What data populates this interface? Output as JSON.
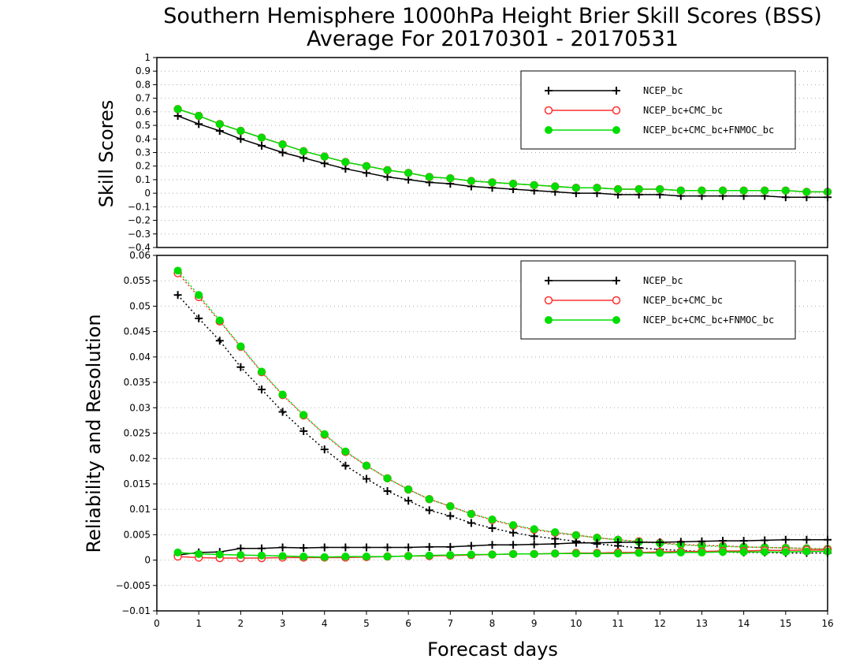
{
  "chart_data": {
    "title_line1": "Southern Hemisphere 1000hPa Height Brier Skill Scores (BSS)",
    "title_line2": "Average For 20170301 - 20170531",
    "xlabel": "Forecast days",
    "xlim": [
      0,
      16
    ],
    "x_ticks": [
      "0",
      "1",
      "2",
      "3",
      "4",
      "5",
      "6",
      "7",
      "8",
      "9",
      "10",
      "11",
      "12",
      "13",
      "14",
      "15",
      "16"
    ],
    "x": [
      0.5,
      1,
      1.5,
      2,
      2.5,
      3,
      3.5,
      4,
      4.5,
      5,
      5.5,
      6,
      6.5,
      7,
      7.5,
      8,
      8.5,
      9,
      9.5,
      10,
      10.5,
      11,
      11.5,
      12,
      12.5,
      13,
      13.5,
      14,
      14.5,
      15,
      15.5,
      16
    ],
    "legend_position": "top-right",
    "series_styles": [
      {
        "name": "NCEP_bc",
        "color": "#000000",
        "marker": "plus"
      },
      {
        "name": "NCEP_bc+CMC_bc",
        "color": "#ff3030",
        "marker": "open-circle"
      },
      {
        "name": "NCEP_bc+CMC_bc+FNMOC_bc",
        "color": "#00dd00",
        "marker": "filled-circle"
      }
    ],
    "panels": [
      {
        "type": "line",
        "ylabel": "Skill Scores",
        "ylim": [
          -0.4,
          1
        ],
        "y_ticks": [
          "−0.4",
          "−0.3",
          "−0.2",
          "−0.1",
          "0",
          "0.1",
          "0.2",
          "0.3",
          "0.4",
          "0.5",
          "0.6",
          "0.7",
          "0.8",
          "0.9",
          "1"
        ],
        "y_tick_values": [
          -0.4,
          -0.3,
          -0.2,
          -0.1,
          0,
          0.1,
          0.2,
          0.3,
          0.4,
          0.5,
          0.6,
          0.7,
          0.8,
          0.9,
          1
        ],
        "grid": true,
        "series": [
          {
            "name": "NCEP_bc",
            "line": "solid",
            "values": [
              0.57,
              0.51,
              0.46,
              0.4,
              0.35,
              0.3,
              0.26,
              0.22,
              0.18,
              0.15,
              0.12,
              0.1,
              0.08,
              0.07,
              0.05,
              0.04,
              0.03,
              0.02,
              0.01,
              0.0,
              0.0,
              -0.01,
              -0.01,
              -0.01,
              -0.02,
              -0.02,
              -0.02,
              -0.02,
              -0.02,
              -0.03,
              -0.03,
              -0.03
            ]
          },
          {
            "name": "NCEP_bc+CMC_bc",
            "line": "solid",
            "values": [
              0.62,
              0.57,
              0.51,
              0.46,
              0.41,
              0.36,
              0.31,
              0.27,
              0.23,
              0.2,
              0.17,
              0.15,
              0.12,
              0.11,
              0.09,
              0.08,
              0.07,
              0.06,
              0.05,
              0.04,
              0.04,
              0.03,
              0.03,
              0.03,
              0.02,
              0.02,
              0.02,
              0.02,
              0.02,
              0.02,
              0.01,
              0.01
            ]
          },
          {
            "name": "NCEP_bc+CMC_bc+FNMOC_bc",
            "line": "solid",
            "values": [
              0.62,
              0.57,
              0.51,
              0.46,
              0.41,
              0.36,
              0.31,
              0.27,
              0.23,
              0.2,
              0.17,
              0.15,
              0.12,
              0.11,
              0.09,
              0.08,
              0.07,
              0.06,
              0.05,
              0.04,
              0.04,
              0.03,
              0.03,
              0.03,
              0.02,
              0.02,
              0.02,
              0.02,
              0.02,
              0.02,
              0.01,
              0.01
            ]
          }
        ]
      },
      {
        "type": "line",
        "ylabel": "Reliability and Resolution",
        "ylim": [
          -0.01,
          0.06
        ],
        "y_ticks": [
          "−0.01",
          "−0.005",
          "0",
          "0.005",
          "0.01",
          "0.015",
          "0.02",
          "0.025",
          "0.03",
          "0.035",
          "0.04",
          "0.045",
          "0.05",
          "0.055",
          "0.06"
        ],
        "y_tick_values": [
          -0.01,
          -0.005,
          0,
          0.005,
          0.01,
          0.015,
          0.02,
          0.025,
          0.03,
          0.035,
          0.04,
          0.045,
          0.05,
          0.055,
          0.06
        ],
        "grid": true,
        "series": [
          {
            "name": "NCEP_bc",
            "role": "resolution",
            "line": "dotted",
            "values": [
              0.0522,
              0.0476,
              0.0432,
              0.038,
              0.0336,
              0.0292,
              0.0254,
              0.0218,
              0.0186,
              0.016,
              0.0136,
              0.0117,
              0.0098,
              0.0087,
              0.0073,
              0.0063,
              0.0054,
              0.0047,
              0.0042,
              0.0037,
              0.0032,
              0.0028,
              0.0024,
              0.0021,
              0.0019,
              0.0017,
              0.0016,
              0.0015,
              0.0015,
              0.0014,
              0.0014,
              0.0014
            ]
          },
          {
            "name": "NCEP_bc",
            "role": "reliability",
            "line": "solid",
            "values": [
              0.001,
              0.0015,
              0.0016,
              0.0023,
              0.0023,
              0.0025,
              0.0024,
              0.0025,
              0.0025,
              0.0025,
              0.0025,
              0.0025,
              0.0026,
              0.0026,
              0.0028,
              0.003,
              0.003,
              0.0031,
              0.0032,
              0.0034,
              0.0034,
              0.0035,
              0.0035,
              0.0035,
              0.0036,
              0.0037,
              0.0038,
              0.0038,
              0.0039,
              0.004,
              0.004,
              0.004
            ]
          },
          {
            "name": "NCEP_bc+CMC_bc",
            "role": "resolution",
            "line": "dotted",
            "values": [
              0.0565,
              0.0518,
              0.047,
              0.042,
              0.037,
              0.0325,
              0.0285,
              0.0247,
              0.0213,
              0.0186,
              0.0161,
              0.0139,
              0.012,
              0.0106,
              0.0091,
              0.0079,
              0.0068,
              0.006,
              0.0054,
              0.0049,
              0.0044,
              0.004,
              0.0037,
              0.0034,
              0.0031,
              0.0029,
              0.0028,
              0.0026,
              0.0025,
              0.0024,
              0.0023,
              0.0022
            ]
          },
          {
            "name": "NCEP_bc+CMC_bc",
            "role": "reliability",
            "line": "solid",
            "values": [
              0.0007,
              0.0005,
              0.0004,
              0.0004,
              0.0004,
              0.0005,
              0.0005,
              0.0005,
              0.0005,
              0.0006,
              0.0007,
              0.0008,
              0.0008,
              0.0009,
              0.001,
              0.0011,
              0.0012,
              0.0012,
              0.0013,
              0.0014,
              0.0014,
              0.0015,
              0.0015,
              0.0016,
              0.0017,
              0.0017,
              0.0018,
              0.0018,
              0.0019,
              0.0019,
              0.002,
              0.002
            ]
          },
          {
            "name": "NCEP_bc+CMC_bc+FNMOC_bc",
            "role": "resolution",
            "line": "dotted",
            "values": [
              0.057,
              0.0522,
              0.0472,
              0.0421,
              0.0371,
              0.0326,
              0.0286,
              0.0248,
              0.0214,
              0.0186,
              0.0161,
              0.0139,
              0.012,
              0.0106,
              0.0091,
              0.008,
              0.0069,
              0.0061,
              0.0055,
              0.0049,
              0.0044,
              0.004,
              0.0036,
              0.0033,
              0.003,
              0.0028,
              0.0027,
              0.0026,
              0.0025,
              0.0024,
              0.0023,
              0.0022
            ]
          },
          {
            "name": "NCEP_bc+CMC_bc+FNMOC_bc",
            "role": "reliability",
            "line": "solid",
            "values": [
              0.0015,
              0.0012,
              0.0011,
              0.001,
              0.0009,
              0.0008,
              0.0007,
              0.0006,
              0.0007,
              0.0007,
              0.0007,
              0.0008,
              0.0009,
              0.001,
              0.0011,
              0.0011,
              0.0012,
              0.0012,
              0.0013,
              0.0013,
              0.0013,
              0.0013,
              0.0014,
              0.0014,
              0.0015,
              0.0015,
              0.0016,
              0.0016,
              0.0016,
              0.0016,
              0.0017,
              0.0017
            ]
          }
        ]
      }
    ]
  }
}
